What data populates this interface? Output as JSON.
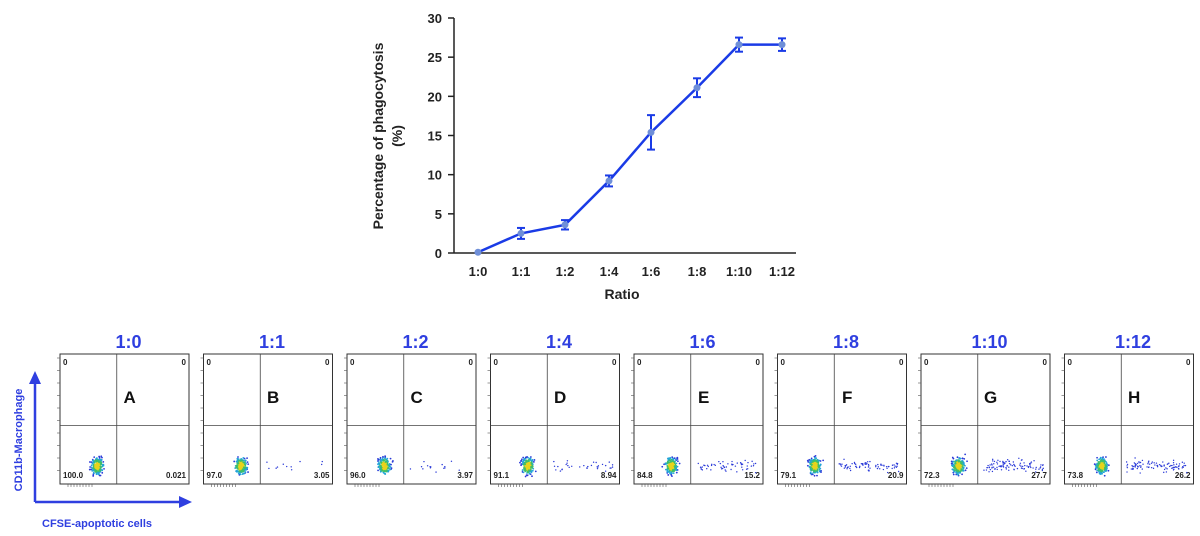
{
  "chart_data": [
    {
      "type": "line",
      "title": "",
      "xlabel": "Ratio",
      "ylabel_line1": "Percentage of phagocytosis",
      "ylabel_line2": "(%)",
      "ylim": [
        0,
        30
      ],
      "yticks": [
        0,
        5,
        10,
        15,
        20,
        25,
        30
      ],
      "categories": [
        "1:0",
        "1:1",
        "1:2",
        "1:4",
        "1:6",
        "1:8",
        "1:10",
        "1:12"
      ],
      "series": [
        {
          "values": [
            0.1,
            2.5,
            3.6,
            9.2,
            15.4,
            21.1,
            26.6,
            26.6
          ],
          "error": [
            0.2,
            0.7,
            0.6,
            0.7,
            2.2,
            1.2,
            0.9,
            0.8
          ],
          "color": "#1a3be6"
        }
      ],
      "grid": false
    },
    {
      "type": "scatter",
      "subtype": "flow-cytometry-quadrant-plots",
      "y_axis_label": "CD11b-Macrophage",
      "x_axis_label": "CFSE-apoptotic cells",
      "panels": [
        {
          "ratio": "1:0",
          "letter": "A",
          "ul": "0",
          "ur": "0",
          "ll": "100.0",
          "lr": "0.021"
        },
        {
          "ratio": "1:1",
          "letter": "B",
          "ul": "0",
          "ur": "0",
          "ll": "97.0",
          "lr": "3.05"
        },
        {
          "ratio": "1:2",
          "letter": "C",
          "ul": "0",
          "ur": "0",
          "ll": "96.0",
          "lr": "3.97"
        },
        {
          "ratio": "1:4",
          "letter": "D",
          "ul": "0",
          "ur": "0",
          "ll": "91.1",
          "lr": "8.94"
        },
        {
          "ratio": "1:6",
          "letter": "E",
          "ul": "0",
          "ur": "0",
          "ll": "84.8",
          "lr": "15.2"
        },
        {
          "ratio": "1:8",
          "letter": "F",
          "ul": "0",
          "ur": "0",
          "ll": "79.1",
          "lr": "20.9"
        },
        {
          "ratio": "1:10",
          "letter": "G",
          "ul": "0",
          "ur": "0",
          "ll": "72.3",
          "lr": "27.7"
        },
        {
          "ratio": "1:12",
          "letter": "H",
          "ul": "0",
          "ur": "0",
          "ll": "73.8",
          "lr": "26.2"
        }
      ]
    }
  ],
  "colors": {
    "accent": "#2f3fe0",
    "line": "#1a3be6",
    "marker": "#6f8fd8"
  }
}
